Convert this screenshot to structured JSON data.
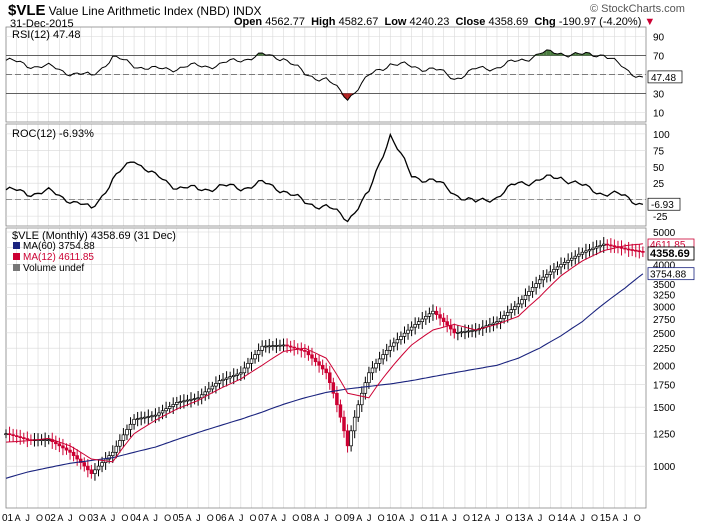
{
  "header": {
    "symbol": "$VLE",
    "name": "Value Line Arithmetic Index (NBD)",
    "exchange": "INDX",
    "date": "31-Dec-2015",
    "watermark": "© StockCharts.com",
    "open_label": "Open",
    "open": "4562.77",
    "high_label": "High",
    "high": "4582.67",
    "low_label": "Low",
    "low": "4240.23",
    "close_label": "Close",
    "close": "4358.69",
    "chg_label": "Chg",
    "chg": "-190.97 (-4.20%)"
  },
  "colors": {
    "price_up": "#000000",
    "price_down": "#cc0033",
    "ma60": "#1a237e",
    "ma12": "#cc0033",
    "rsi_fill_up": "#4a7c3f",
    "rsi_fill_down": "#b22222",
    "grid": "#d8d8d8"
  },
  "chart_data": [
    {
      "type": "line",
      "title": "RSI(12) 47.48",
      "legend_text": "RSI(12) 47.48",
      "ylim": [
        0,
        100
      ],
      "y_ticks": [
        "90",
        "70",
        "50",
        "30",
        "10"
      ],
      "reference_lines": [
        70,
        30
      ],
      "last_value_label": "47.48",
      "x": [
        2001.0,
        2001.5,
        2002.0,
        2002.5,
        2003.0,
        2003.5,
        2004.0,
        2004.5,
        2005.0,
        2005.5,
        2006.0,
        2006.5,
        2007.0,
        2007.5,
        2008.0,
        2008.5,
        2009.0,
        2009.5,
        2010.0,
        2010.5,
        2011.0,
        2011.5,
        2012.0,
        2012.5,
        2013.0,
        2013.5,
        2014.0,
        2014.5,
        2015.0,
        2015.5,
        2015.92
      ],
      "y": [
        65,
        60,
        58,
        52,
        48,
        68,
        60,
        55,
        57,
        59,
        60,
        66,
        70,
        68,
        50,
        45,
        25,
        48,
        62,
        58,
        56,
        46,
        55,
        58,
        64,
        72,
        73,
        70,
        72,
        55,
        47.48
      ]
    },
    {
      "type": "line",
      "title": "ROC(12) -6.93%",
      "legend_text": "ROC(12) -6.93%",
      "ylim": [
        -40,
        115
      ],
      "y_ticks": [
        "100",
        "75",
        "50",
        "25",
        "-6.93",
        "-25"
      ],
      "reference_lines": [
        0
      ],
      "last_value_label": "-6.93",
      "x": [
        2001.0,
        2001.5,
        2002.0,
        2002.5,
        2003.0,
        2003.5,
        2004.0,
        2004.5,
        2005.0,
        2005.5,
        2006.0,
        2006.5,
        2007.0,
        2007.5,
        2008.0,
        2008.5,
        2009.0,
        2009.5,
        2010.0,
        2010.5,
        2011.0,
        2011.5,
        2012.0,
        2012.5,
        2013.0,
        2013.5,
        2014.0,
        2014.5,
        2015.0,
        2015.5,
        2015.92
      ],
      "y": [
        15,
        10,
        12,
        0,
        -15,
        30,
        62,
        35,
        20,
        15,
        20,
        18,
        25,
        15,
        -5,
        -10,
        -30,
        10,
        100,
        35,
        30,
        10,
        -5,
        5,
        25,
        30,
        35,
        20,
        10,
        5,
        -6.93
      ]
    },
    {
      "type": "line",
      "title": "$VLE (Monthly) 4358.69 (31 Dec)",
      "legend": [
        "MA(60) 3754.88",
        "MA(12) 4611.85",
        "Volume undef"
      ],
      "ylim": [
        750,
        5000
      ],
      "y_ticks": [
        "5000",
        "4500",
        "4000",
        "3500",
        "3250",
        "3000",
        "2750",
        "2500",
        "2250",
        "2000",
        "1750",
        "1500",
        "1250",
        "1000"
      ],
      "last_value_labels": [
        "4611.85",
        "4358.69",
        "3754.88"
      ],
      "x_ticks": [
        "01",
        "A",
        "J",
        "O",
        "02",
        "A",
        "J",
        "O",
        "03",
        "A",
        "J",
        "O",
        "04",
        "A",
        "J",
        "O",
        "05",
        "A",
        "J",
        "O",
        "06",
        "A",
        "J",
        "O",
        "07",
        "A",
        "J",
        "O",
        "08",
        "A",
        "J",
        "O",
        "09",
        "A",
        "J",
        "O",
        "10",
        "A",
        "J",
        "O",
        "11",
        "A",
        "J",
        "O",
        "12",
        "A",
        "J",
        "O",
        "13",
        "A",
        "J",
        "O",
        "14",
        "A",
        "J",
        "O",
        "15",
        "A",
        "J",
        "O"
      ],
      "x": [
        2001.0,
        2001.5,
        2002.0,
        2002.5,
        2003.0,
        2003.5,
        2004.0,
        2004.5,
        2005.0,
        2005.5,
        2006.0,
        2006.5,
        2007.0,
        2007.5,
        2008.0,
        2008.5,
        2009.0,
        2009.5,
        2010.0,
        2010.5,
        2011.0,
        2011.5,
        2012.0,
        2012.5,
        2013.0,
        2013.5,
        2014.0,
        2014.5,
        2015.0,
        2015.5,
        2015.92
      ],
      "series": [
        {
          "name": "$VLE",
          "values": [
            1250,
            1200,
            1200,
            1100,
            950,
            1100,
            1380,
            1420,
            1550,
            1600,
            1800,
            1900,
            2280,
            2300,
            2200,
            1900,
            1150,
            1900,
            2280,
            2600,
            2900,
            2500,
            2550,
            2700,
            3050,
            3600,
            4000,
            4350,
            4600,
            4450,
            4358.69
          ]
        },
        {
          "name": "MA(12)",
          "values": [
            1180,
            1190,
            1210,
            1150,
            1050,
            1030,
            1250,
            1370,
            1480,
            1570,
            1700,
            1820,
            2000,
            2200,
            2250,
            2100,
            1650,
            1600,
            1950,
            2300,
            2550,
            2650,
            2550,
            2650,
            2800,
            3200,
            3700,
            4100,
            4400,
            4550,
            4611.85
          ]
        },
        {
          "name": "MA(60)",
          "values": [
            920,
            960,
            990,
            1020,
            1040,
            1060,
            1100,
            1140,
            1200,
            1260,
            1320,
            1380,
            1450,
            1530,
            1600,
            1660,
            1700,
            1730,
            1760,
            1800,
            1850,
            1900,
            1950,
            2000,
            2100,
            2250,
            2450,
            2700,
            3050,
            3400,
            3754.88
          ]
        }
      ]
    }
  ]
}
